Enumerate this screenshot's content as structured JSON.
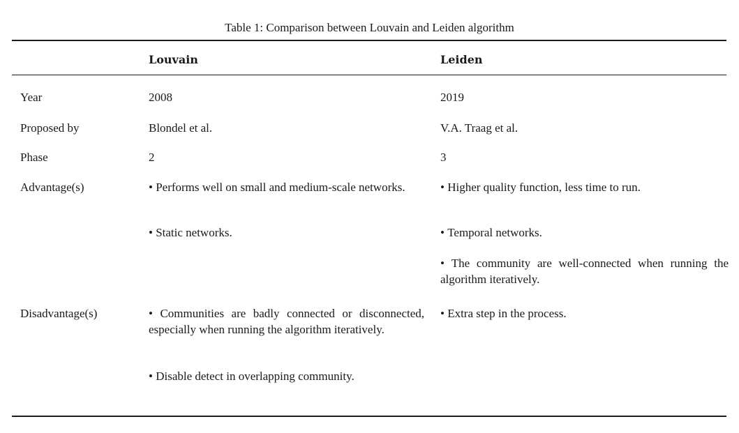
{
  "table": {
    "caption": "Table 1: Comparison between Louvain and Leiden algorithm",
    "headers": [
      "",
      "Louvain",
      "Leiden"
    ],
    "rows": [
      {
        "label": "Year",
        "louvain": [
          "2008"
        ],
        "leiden": [
          "2019"
        ]
      },
      {
        "label": "Proposed by",
        "louvain": [
          "Blondel et al."
        ],
        "leiden": [
          "V.A. Traag et al."
        ]
      },
      {
        "label": "Phase",
        "louvain": [
          "2"
        ],
        "leiden": [
          "3"
        ]
      },
      {
        "label": "Advantage(s)",
        "louvain": [
          "Performs well on small and medium-scale networks.",
          "Static networks."
        ],
        "leiden": [
          "Higher quality function, less time to run.",
          "Temporal networks.",
          "The community are well-connected when running the algorithm iteratively."
        ]
      },
      {
        "label": "Disadvantage(s)",
        "louvain": [
          "Communities are badly connected or disconnected, especially when running the algorithm iteratively.",
          "Disable detect in overlapping community."
        ],
        "leiden": [
          "Extra step in the process."
        ]
      }
    ]
  }
}
